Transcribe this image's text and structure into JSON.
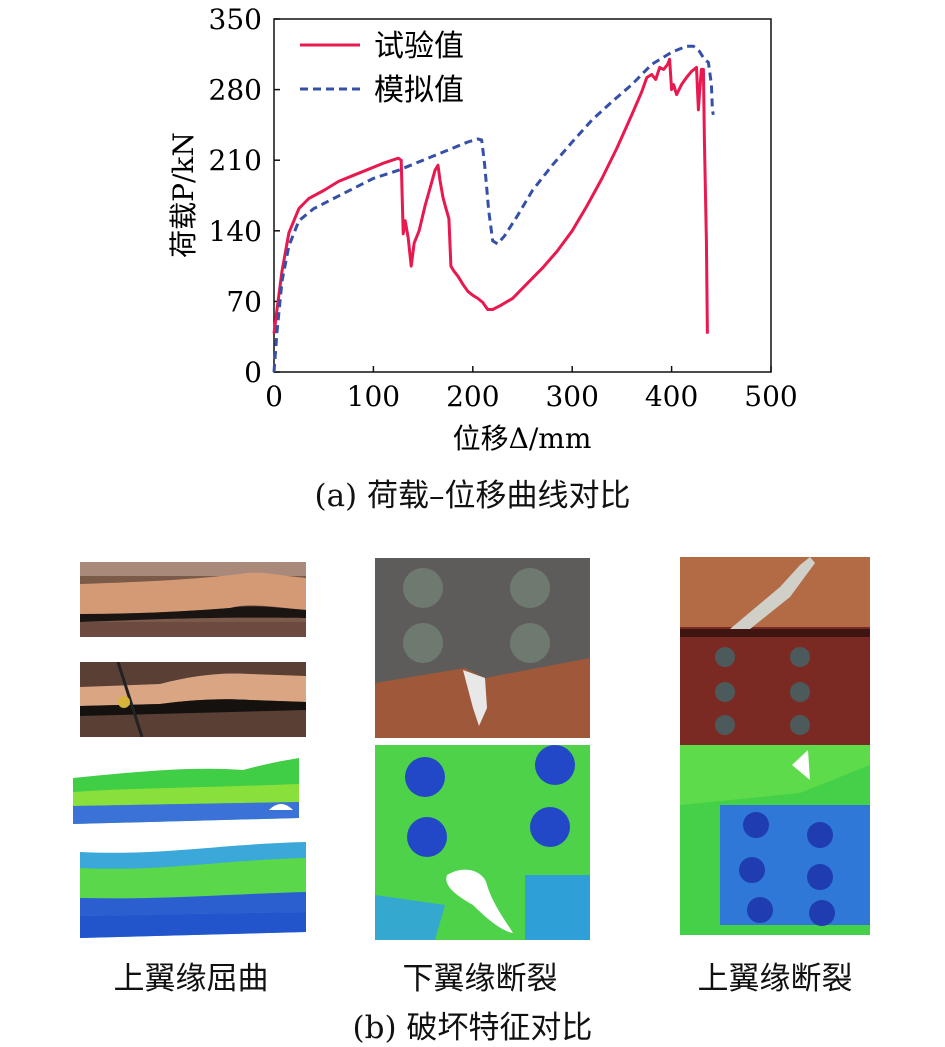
{
  "chart_data": {
    "type": "line",
    "xlabel": "位移Δ/mm",
    "ylabel": "荷载P/kN",
    "xlim": [
      0,
      500
    ],
    "ylim": [
      0,
      350
    ],
    "xticks": [
      0,
      100,
      200,
      300,
      400,
      500
    ],
    "yticks": [
      0,
      70,
      140,
      210,
      280,
      350
    ],
    "grid": false,
    "legend_position": "top-left",
    "series": [
      {
        "name": "试验值",
        "style": "solid",
        "color": "#e8194f",
        "points": [
          [
            0,
            38
          ],
          [
            3,
            62
          ],
          [
            8,
            100
          ],
          [
            15,
            138
          ],
          [
            25,
            162
          ],
          [
            35,
            172
          ],
          [
            50,
            180
          ],
          [
            65,
            189
          ],
          [
            80,
            195
          ],
          [
            95,
            201
          ],
          [
            110,
            207
          ],
          [
            125,
            212
          ],
          [
            128,
            210
          ],
          [
            130,
            137
          ],
          [
            132,
            150
          ],
          [
            135,
            133
          ],
          [
            138,
            105
          ],
          [
            141,
            128
          ],
          [
            146,
            140
          ],
          [
            152,
            165
          ],
          [
            158,
            186
          ],
          [
            162,
            200
          ],
          [
            165,
            205
          ],
          [
            167,
            190
          ],
          [
            170,
            173
          ],
          [
            173,
            162
          ],
          [
            176,
            152
          ],
          [
            178,
            105
          ],
          [
            181,
            100
          ],
          [
            185,
            95
          ],
          [
            190,
            87
          ],
          [
            195,
            80
          ],
          [
            200,
            76
          ],
          [
            205,
            73
          ],
          [
            210,
            69
          ],
          [
            215,
            62
          ],
          [
            220,
            62
          ],
          [
            228,
            66
          ],
          [
            240,
            73
          ],
          [
            255,
            88
          ],
          [
            270,
            103
          ],
          [
            285,
            120
          ],
          [
            300,
            140
          ],
          [
            315,
            165
          ],
          [
            330,
            192
          ],
          [
            345,
            222
          ],
          [
            360,
            255
          ],
          [
            370,
            278
          ],
          [
            375,
            292
          ],
          [
            380,
            295
          ],
          [
            384,
            290
          ],
          [
            388,
            302
          ],
          [
            392,
            300
          ],
          [
            396,
            305
          ],
          [
            398,
            310
          ],
          [
            400,
            280
          ],
          [
            402,
            285
          ],
          [
            405,
            275
          ],
          [
            410,
            285
          ],
          [
            415,
            292
          ],
          [
            420,
            298
          ],
          [
            425,
            302
          ],
          [
            427,
            260
          ],
          [
            428,
            275
          ],
          [
            430,
            300
          ],
          [
            432,
            300
          ],
          [
            433,
            230
          ],
          [
            435,
            130
          ],
          [
            436,
            38
          ]
        ]
      },
      {
        "name": "模拟值",
        "style": "dashed",
        "color": "#3650a8",
        "points": [
          [
            0,
            0
          ],
          [
            3,
            40
          ],
          [
            8,
            90
          ],
          [
            15,
            125
          ],
          [
            25,
            150
          ],
          [
            40,
            162
          ],
          [
            60,
            172
          ],
          [
            80,
            182
          ],
          [
            100,
            192
          ],
          [
            125,
            200
          ],
          [
            150,
            210
          ],
          [
            175,
            220
          ],
          [
            195,
            228
          ],
          [
            205,
            231
          ],
          [
            209,
            230
          ],
          [
            212,
            205
          ],
          [
            216,
            160
          ],
          [
            220,
            130
          ],
          [
            225,
            127
          ],
          [
            232,
            135
          ],
          [
            245,
            155
          ],
          [
            260,
            180
          ],
          [
            280,
            205
          ],
          [
            300,
            228
          ],
          [
            320,
            250
          ],
          [
            340,
            268
          ],
          [
            360,
            285
          ],
          [
            380,
            305
          ],
          [
            400,
            317
          ],
          [
            415,
            323
          ],
          [
            422,
            323
          ],
          [
            428,
            318
          ],
          [
            433,
            310
          ],
          [
            437,
            307
          ],
          [
            440,
            285
          ],
          [
            441,
            260
          ],
          [
            442,
            255
          ]
        ]
      }
    ]
  },
  "captions": {
    "a": "(a) 荷载–位移曲线对比",
    "b": "(b) 破坏特征对比"
  },
  "panels": [
    {
      "label": "上翼缘屈曲"
    },
    {
      "label": "下翼缘断裂"
    },
    {
      "label": "上翼缘断裂"
    }
  ]
}
